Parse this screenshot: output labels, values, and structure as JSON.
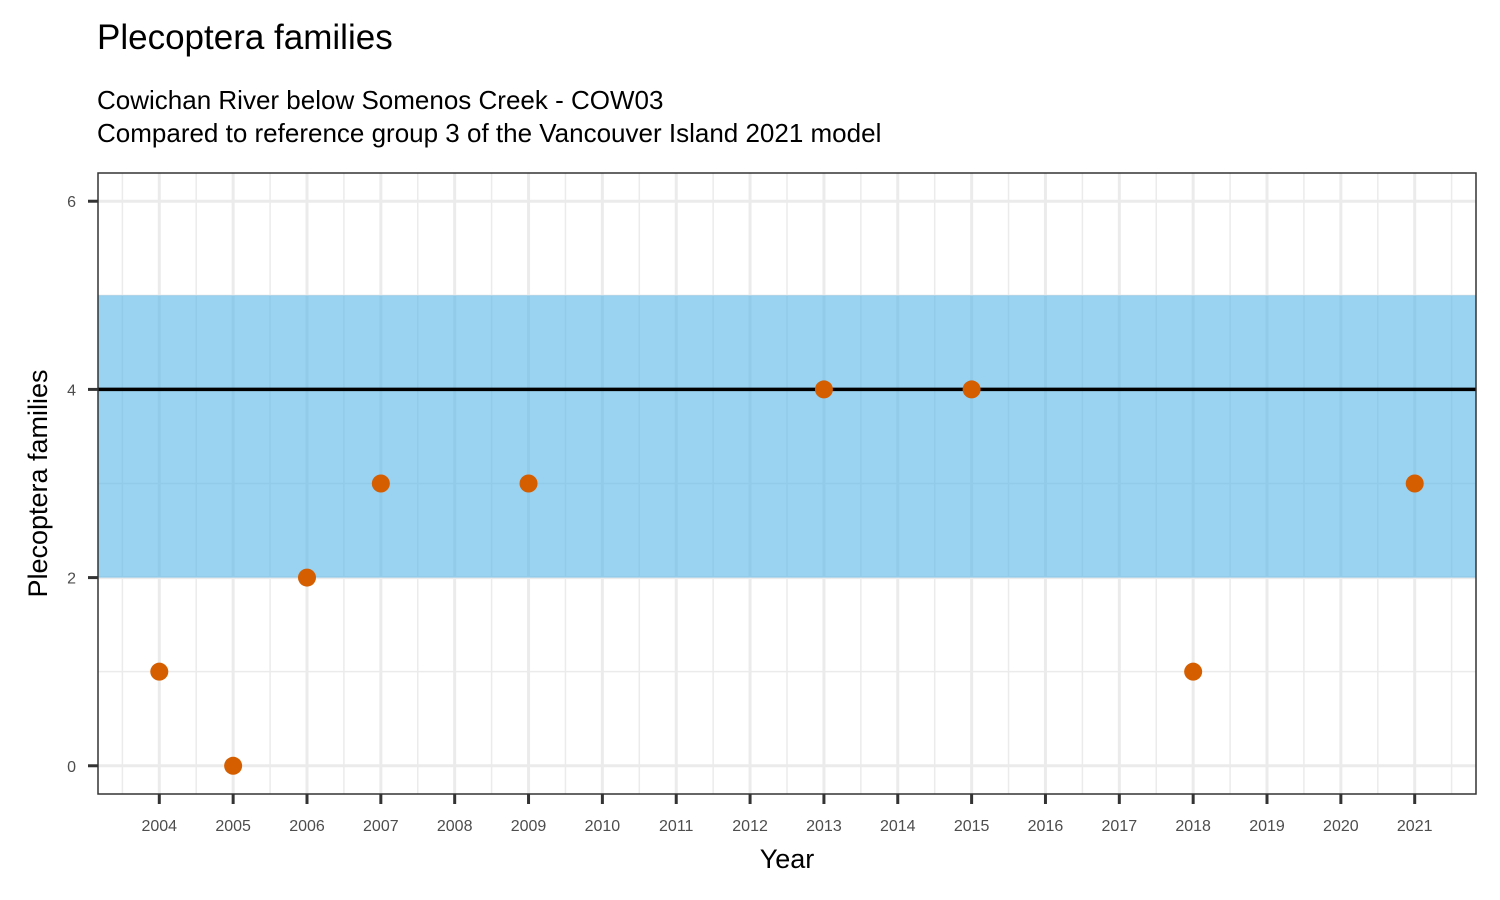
{
  "chart_data": {
    "type": "scatter",
    "title": "Plecoptera families",
    "subtitle": [
      "Cowichan River below Somenos Creek - COW03",
      "Compared to reference group 3 of the Vancouver Island 2021 model"
    ],
    "xlabel": "Year",
    "ylabel": "Plecoptera families",
    "xlim": [
      2003.17,
      2021.83
    ],
    "ylim": [
      -0.3,
      6.3
    ],
    "x_ticks": [
      2004,
      2005,
      2006,
      2007,
      2008,
      2009,
      2010,
      2011,
      2012,
      2013,
      2014,
      2015,
      2016,
      2017,
      2018,
      2019,
      2020,
      2021
    ],
    "y_ticks": [
      0,
      2,
      4,
      6
    ],
    "reference_band": {
      "ymin": 2,
      "ymax": 5,
      "color": "#56B4E9"
    },
    "reference_line": {
      "y": 4,
      "color": "#000000"
    },
    "points": [
      {
        "x": 2004,
        "y": 1
      },
      {
        "x": 2005,
        "y": 0
      },
      {
        "x": 2006,
        "y": 2
      },
      {
        "x": 2007,
        "y": 3
      },
      {
        "x": 2009,
        "y": 3
      },
      {
        "x": 2013,
        "y": 4
      },
      {
        "x": 2015,
        "y": 4
      },
      {
        "x": 2018,
        "y": 1
      },
      {
        "x": 2021,
        "y": 3
      }
    ],
    "point_color": "#D55E00",
    "grid": true,
    "legend": "none"
  }
}
